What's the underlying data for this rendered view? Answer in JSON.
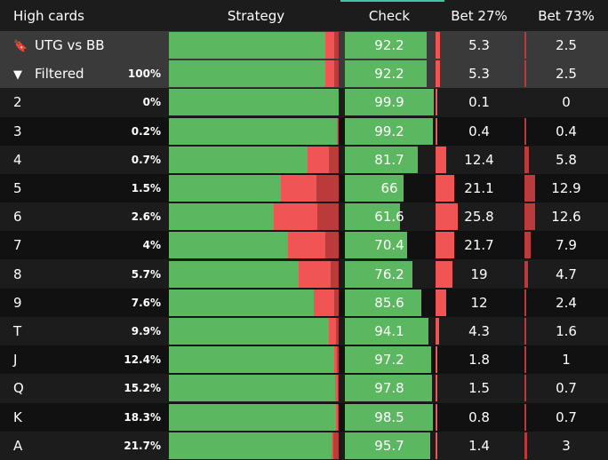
{
  "header": {
    "hand_category": "High cards",
    "strategy": "Strategy",
    "check": "Check",
    "bet_small": "Bet 27%",
    "bet_large": "Bet 73%"
  },
  "colors": {
    "check": "#5cb860",
    "bet_small": "#f05454",
    "bet_large": "#bb3b3b",
    "accent": "#3ec7a6"
  },
  "rows": [
    {
      "label": "UTG vs BB",
      "icon": "bookmark-icon",
      "glyph": "🔖",
      "pct": "",
      "check": 92.2,
      "bet_small": 5.3,
      "bet_large": 2.5,
      "summary": true
    },
    {
      "label": "Filtered",
      "icon": "filter-icon",
      "glyph": "▼",
      "pct": "100%",
      "check": 92.2,
      "bet_small": 5.3,
      "bet_large": 2.5,
      "summary": true
    },
    {
      "label": "2",
      "pct": "0%",
      "check": 99.9,
      "bet_small": 0.1,
      "bet_large": 0
    },
    {
      "label": "3",
      "pct": "0.2%",
      "check": 99.2,
      "bet_small": 0.4,
      "bet_large": 0.4
    },
    {
      "label": "4",
      "pct": "0.7%",
      "check": 81.7,
      "bet_small": 12.4,
      "bet_large": 5.8
    },
    {
      "label": "5",
      "pct": "1.5%",
      "check": 66,
      "bet_small": 21.1,
      "bet_large": 12.9
    },
    {
      "label": "6",
      "pct": "2.6%",
      "check": 61.6,
      "bet_small": 25.8,
      "bet_large": 12.6
    },
    {
      "label": "7",
      "pct": "4%",
      "check": 70.4,
      "bet_small": 21.7,
      "bet_large": 7.9
    },
    {
      "label": "8",
      "pct": "5.7%",
      "check": 76.2,
      "bet_small": 19,
      "bet_large": 4.7
    },
    {
      "label": "9",
      "pct": "7.6%",
      "check": 85.6,
      "bet_small": 12,
      "bet_large": 2.4
    },
    {
      "label": "T",
      "pct": "9.9%",
      "check": 94.1,
      "bet_small": 4.3,
      "bet_large": 1.6
    },
    {
      "label": "J",
      "pct": "12.4%",
      "check": 97.2,
      "bet_small": 1.8,
      "bet_large": 1
    },
    {
      "label": "Q",
      "pct": "15.2%",
      "check": 97.8,
      "bet_small": 1.5,
      "bet_large": 0.7
    },
    {
      "label": "K",
      "pct": "18.3%",
      "check": 98.5,
      "bet_small": 0.8,
      "bet_large": 0.7
    },
    {
      "label": "A",
      "pct": "21.7%",
      "check": 95.7,
      "bet_small": 1.4,
      "bet_large": 3
    }
  ]
}
